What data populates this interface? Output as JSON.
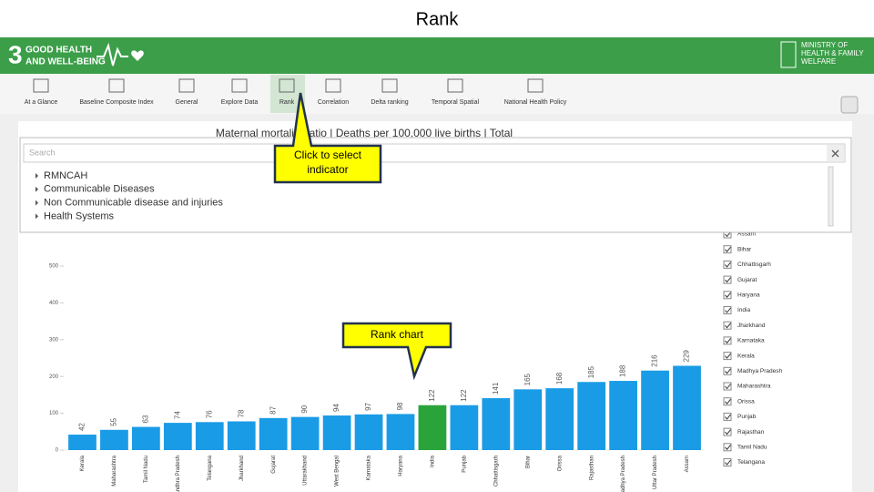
{
  "page_title": "Rank",
  "header": {
    "sdg_number": "3",
    "sdg_line1": "GOOD HEALTH",
    "sdg_line2": "AND WELL-BEING",
    "ministry_lines": [
      "MINISTRY OF",
      "HEALTH & FAMILY",
      "WELFARE"
    ]
  },
  "nav": [
    "At a Glance",
    "Baseline Composite Index",
    "General",
    "Explore Data",
    "Rank",
    "Correlation",
    "Delta ranking",
    "Temporal Spatial",
    "National Health Policy"
  ],
  "indicator_menu": {
    "search_placeholder": "Search",
    "items": [
      "RMNCAH",
      "Communicable Diseases",
      "Non Communicable disease and injuries",
      "Health Systems"
    ]
  },
  "callouts": [
    {
      "lines": [
        "Click to select",
        "indicator"
      ]
    },
    {
      "lines": [
        "Rank chart"
      ]
    }
  ],
  "chart_data": {
    "type": "bar",
    "title": "Maternal mortality ratio | Deaths per 100,000 live births | Total",
    "categories": [
      "Kerala",
      "Maharashtra",
      "Tamil Nadu",
      "Andhra Pradesh",
      "Telangana",
      "Jharkhand",
      "Gujarat",
      "Uttarakhand",
      "West Bengal",
      "Karnataka",
      "Haryana",
      "India",
      "Punjab",
      "Chhattisgarh",
      "Bihar",
      "Orissa",
      "Rajasthan",
      "Madhya Pradesh",
      "Uttar Pradesh",
      "Assam"
    ],
    "values": [
      42,
      55,
      63,
      74,
      76,
      78,
      87,
      90,
      94,
      97,
      98,
      122,
      122,
      141,
      165,
      168,
      185,
      188,
      216,
      229
    ],
    "colors": [
      "#1a9be6",
      "#1a9be6",
      "#1a9be6",
      "#1a9be6",
      "#1a9be6",
      "#1a9be6",
      "#1a9be6",
      "#1a9be6",
      "#1a9be6",
      "#1a9be6",
      "#1a9be6",
      "#2ba33b",
      "#1a9be6",
      "#1a9be6",
      "#1a9be6",
      "#1a9be6",
      "#1a9be6",
      "#1a9be6",
      "#1a9be6",
      "#1a9be6"
    ],
    "ylim": [
      0,
      500
    ],
    "yticks": [
      0,
      100,
      200,
      300,
      400,
      500
    ],
    "legend": [
      "Assam",
      "Bihar",
      "Chhattisgarh",
      "Gujarat",
      "Haryana",
      "India",
      "Jharkhand",
      "Karnataka",
      "Kerala",
      "Madhya Pradesh",
      "Maharashtra",
      "Orissa",
      "Punjab",
      "Rajasthan",
      "Tamil Nadu",
      "Telangana"
    ]
  }
}
